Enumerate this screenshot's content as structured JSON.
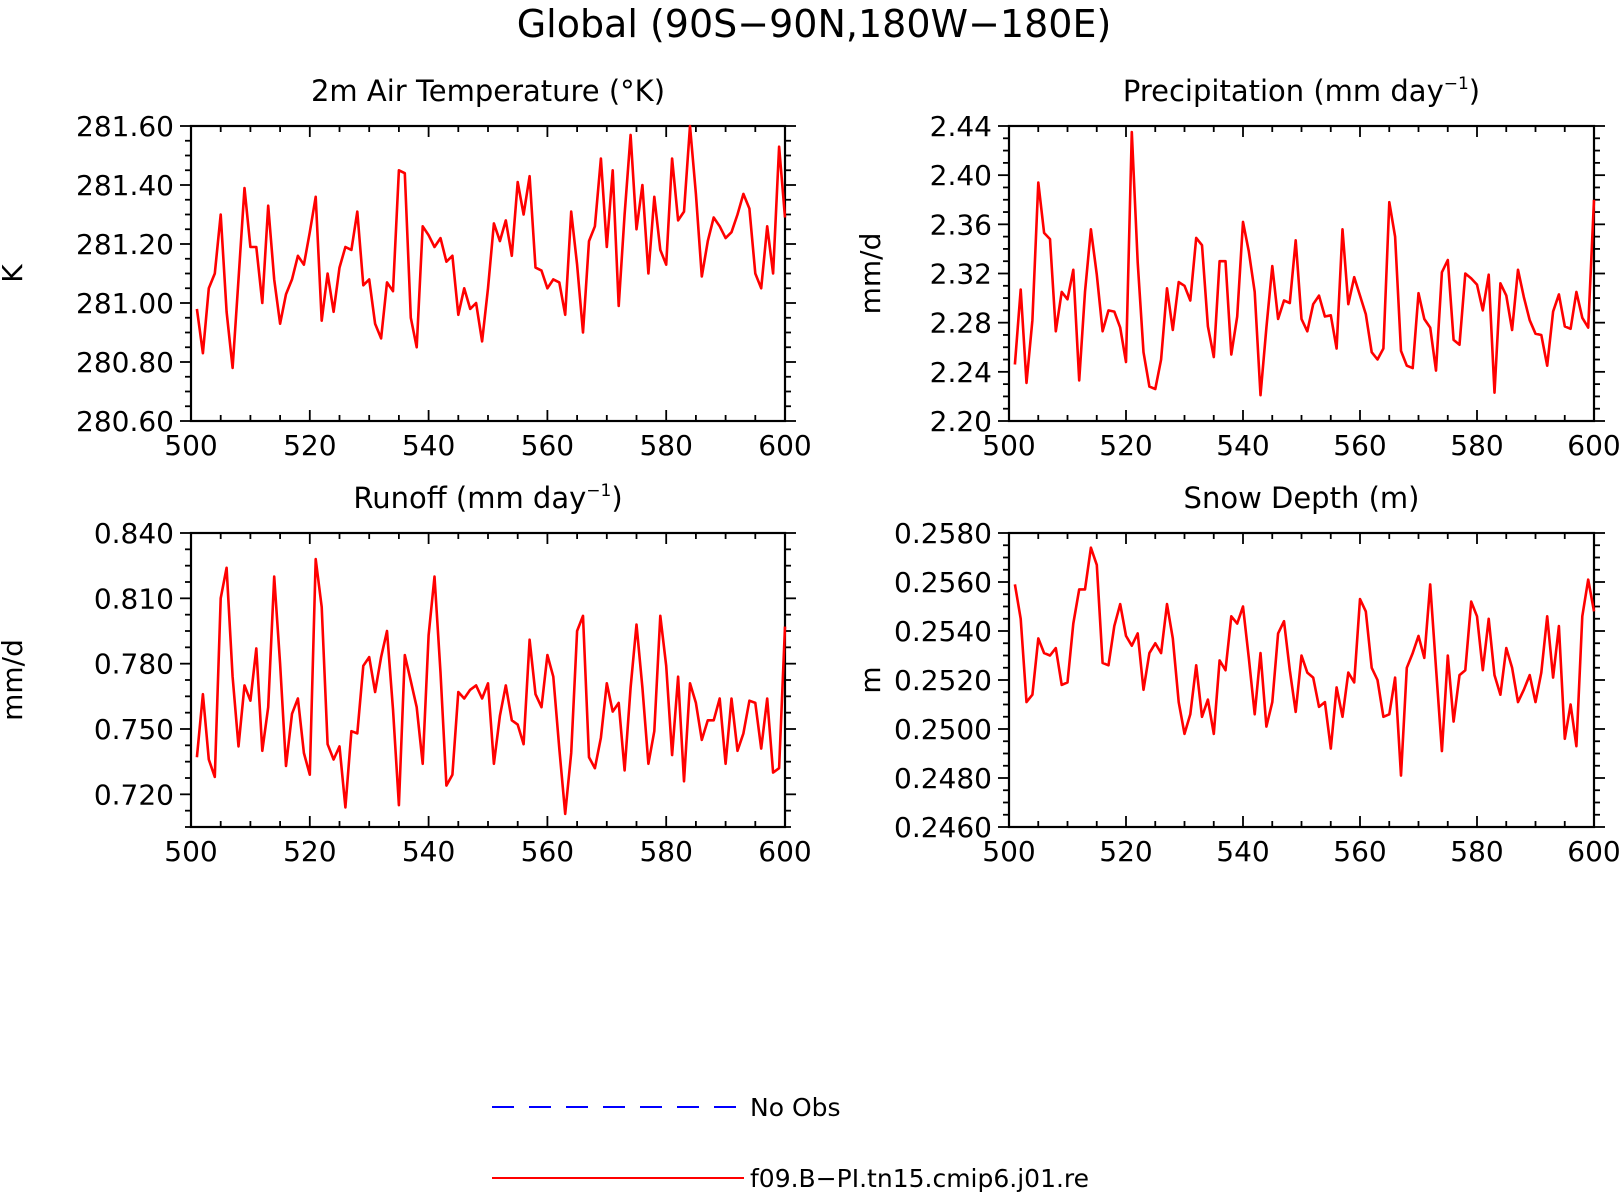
{
  "figure": {
    "title": "Global (90S−90N,180W−180E)"
  },
  "colors": {
    "model": "#ff0000",
    "obs": "#0000ff"
  },
  "legend": {
    "items": [
      {
        "label": "No Obs",
        "style": "dashed",
        "color": "#0000ff"
      },
      {
        "label": "f09.B−PI.tn15.cmip6.j01.re",
        "style": "solid",
        "color": "#ff0000"
      }
    ]
  },
  "chart_data": [
    {
      "type": "line",
      "title": "2m Air Temperature (°K)",
      "ylabel": "K",
      "xlim": [
        500,
        600
      ],
      "ylim": [
        280.6,
        281.6
      ],
      "xticks": [
        500,
        520,
        540,
        560,
        580,
        600
      ],
      "xtick_labels": [
        "500",
        "520",
        "540",
        "560",
        "580",
        "600"
      ],
      "yticks": [
        280.6,
        280.8,
        281.0,
        281.2,
        281.4,
        281.6
      ],
      "ytick_labels": [
        "280.60",
        "280.80",
        "281.00",
        "281.20",
        "281.40",
        "281.60"
      ],
      "series": [
        {
          "x_start": 501,
          "x_step": 1,
          "values": [
            280.98,
            280.83,
            281.05,
            281.1,
            281.3,
            280.97,
            280.78,
            281.08,
            281.39,
            281.19,
            281.19,
            281.0,
            281.33,
            281.08,
            280.93,
            281.03,
            281.08,
            281.16,
            281.13,
            281.24,
            281.36,
            280.94,
            281.1,
            280.97,
            281.12,
            281.19,
            281.18,
            281.31,
            281.06,
            281.08,
            280.93,
            280.88,
            281.07,
            281.04,
            281.45,
            281.44,
            280.95,
            280.85,
            281.26,
            281.23,
            281.19,
            281.22,
            281.14,
            281.16,
            280.96,
            281.05,
            280.98,
            281.0,
            280.87,
            281.05,
            281.27,
            281.21,
            281.28,
            281.16,
            281.41,
            281.3,
            281.43,
            281.12,
            281.11,
            281.05,
            281.08,
            281.07,
            280.96,
            281.31,
            281.13,
            280.9,
            281.21,
            281.26,
            281.49,
            281.19,
            281.45,
            280.99,
            281.3,
            281.57,
            281.25,
            281.4,
            281.1,
            281.36,
            281.18,
            281.13,
            281.49,
            281.28,
            281.31,
            281.6,
            281.37,
            281.09,
            281.21,
            281.29,
            281.26,
            281.22,
            281.24,
            281.3,
            281.37,
            281.32,
            281.1,
            281.05,
            281.26,
            281.1,
            281.53,
            281.29
          ]
        }
      ]
    },
    {
      "type": "line",
      "title": "Precipitation (mm day⁻¹)",
      "ylabel": "mm/d",
      "xlim": [
        500,
        600
      ],
      "ylim": [
        2.2,
        2.44
      ],
      "xticks": [
        500,
        520,
        540,
        560,
        580,
        600
      ],
      "xtick_labels": [
        "500",
        "520",
        "540",
        "560",
        "580",
        "600"
      ],
      "yticks": [
        2.2,
        2.24,
        2.28,
        2.32,
        2.36,
        2.4,
        2.44
      ],
      "ytick_labels": [
        "2.20",
        "2.24",
        "2.28",
        "2.32",
        "2.36",
        "2.40",
        "2.44"
      ],
      "series": [
        {
          "x_start": 501,
          "x_step": 1,
          "values": [
            2.246,
            2.307,
            2.231,
            2.282,
            2.394,
            2.353,
            2.348,
            2.273,
            2.305,
            2.299,
            2.323,
            2.233,
            2.305,
            2.356,
            2.319,
            2.273,
            2.29,
            2.289,
            2.276,
            2.248,
            2.435,
            2.329,
            2.256,
            2.228,
            2.226,
            2.25,
            2.308,
            2.274,
            2.313,
            2.31,
            2.298,
            2.349,
            2.343,
            2.277,
            2.252,
            2.33,
            2.33,
            2.254,
            2.285,
            2.362,
            2.338,
            2.305,
            2.221,
            2.276,
            2.326,
            2.283,
            2.298,
            2.296,
            2.347,
            2.283,
            2.273,
            2.295,
            2.302,
            2.285,
            2.286,
            2.259,
            2.356,
            2.295,
            2.317,
            2.302,
            2.287,
            2.256,
            2.25,
            2.259,
            2.378,
            2.35,
            2.257,
            2.245,
            2.243,
            2.304,
            2.283,
            2.276,
            2.241,
            2.321,
            2.331,
            2.266,
            2.262,
            2.32,
            2.316,
            2.311,
            2.29,
            2.319,
            2.223,
            2.312,
            2.302,
            2.274,
            2.323,
            2.301,
            2.282,
            2.271,
            2.27,
            2.245,
            2.289,
            2.303,
            2.277,
            2.275,
            2.305,
            2.284,
            2.276,
            2.38
          ]
        }
      ]
    },
    {
      "type": "line",
      "title": "Runoff (mm day⁻¹)",
      "ylabel": "mm/d",
      "xlim": [
        500,
        600
      ],
      "ylim": [
        0.705,
        0.84
      ],
      "xticks": [
        500,
        520,
        540,
        560,
        580,
        600
      ],
      "xtick_labels": [
        "500",
        "520",
        "540",
        "560",
        "580",
        "600"
      ],
      "yticks": [
        0.72,
        0.75,
        0.78,
        0.81,
        0.84
      ],
      "ytick_labels": [
        "0.720",
        "0.750",
        "0.780",
        "0.810",
        "0.840"
      ],
      "series": [
        {
          "x_start": 501,
          "x_step": 1,
          "values": [
            0.737,
            0.766,
            0.736,
            0.728,
            0.81,
            0.824,
            0.774,
            0.742,
            0.77,
            0.763,
            0.787,
            0.74,
            0.76,
            0.82,
            0.78,
            0.733,
            0.757,
            0.764,
            0.739,
            0.729,
            0.828,
            0.806,
            0.743,
            0.736,
            0.742,
            0.714,
            0.749,
            0.748,
            0.779,
            0.783,
            0.767,
            0.783,
            0.795,
            0.759,
            0.715,
            0.784,
            0.772,
            0.76,
            0.734,
            0.793,
            0.82,
            0.776,
            0.724,
            0.729,
            0.767,
            0.764,
            0.768,
            0.77,
            0.764,
            0.771,
            0.734,
            0.756,
            0.77,
            0.754,
            0.752,
            0.743,
            0.791,
            0.766,
            0.76,
            0.784,
            0.774,
            0.741,
            0.711,
            0.739,
            0.795,
            0.802,
            0.737,
            0.732,
            0.746,
            0.771,
            0.758,
            0.762,
            0.731,
            0.769,
            0.798,
            0.769,
            0.734,
            0.749,
            0.802,
            0.779,
            0.738,
            0.774,
            0.726,
            0.771,
            0.762,
            0.745,
            0.754,
            0.754,
            0.764,
            0.734,
            0.764,
            0.74,
            0.748,
            0.763,
            0.762,
            0.741,
            0.764,
            0.73,
            0.732,
            0.797
          ]
        }
      ]
    },
    {
      "type": "line",
      "title": "Snow Depth (m)",
      "ylabel": "m",
      "xlim": [
        500,
        600
      ],
      "ylim": [
        0.246,
        0.258
      ],
      "xticks": [
        500,
        520,
        540,
        560,
        580,
        600
      ],
      "xtick_labels": [
        "500",
        "520",
        "540",
        "560",
        "580",
        "600"
      ],
      "yticks": [
        0.246,
        0.248,
        0.25,
        0.252,
        0.254,
        0.256,
        0.258
      ],
      "ytick_labels": [
        "0.2460",
        "0.2480",
        "0.2500",
        "0.2520",
        "0.2540",
        "0.2560",
        "0.2580"
      ],
      "series": [
        {
          "x_start": 501,
          "x_step": 1,
          "values": [
            0.2559,
            0.2545,
            0.2511,
            0.2514,
            0.2537,
            0.2531,
            0.253,
            0.2533,
            0.2518,
            0.2519,
            0.2543,
            0.2557,
            0.2557,
            0.2574,
            0.2567,
            0.2527,
            0.2526,
            0.2542,
            0.2551,
            0.2538,
            0.2534,
            0.2539,
            0.2516,
            0.2531,
            0.2535,
            0.2531,
            0.2551,
            0.2537,
            0.2511,
            0.2498,
            0.2506,
            0.2526,
            0.2505,
            0.2512,
            0.2498,
            0.2528,
            0.2524,
            0.2546,
            0.2543,
            0.255,
            0.2529,
            0.2506,
            0.2531,
            0.2501,
            0.2511,
            0.2539,
            0.2544,
            0.2524,
            0.2507,
            0.253,
            0.2523,
            0.2521,
            0.2509,
            0.2511,
            0.2492,
            0.2517,
            0.2505,
            0.2523,
            0.2519,
            0.2553,
            0.2548,
            0.2525,
            0.252,
            0.2505,
            0.2506,
            0.2521,
            0.2481,
            0.2525,
            0.2531,
            0.2538,
            0.2529,
            0.2559,
            0.2525,
            0.2491,
            0.253,
            0.2503,
            0.2522,
            0.2524,
            0.2552,
            0.2546,
            0.2524,
            0.2545,
            0.2522,
            0.2514,
            0.2533,
            0.2525,
            0.2511,
            0.2516,
            0.2522,
            0.2511,
            0.2523,
            0.2546,
            0.2521,
            0.2542,
            0.2496,
            0.251,
            0.2493,
            0.2546,
            0.2561,
            0.2548
          ]
        }
      ]
    }
  ]
}
